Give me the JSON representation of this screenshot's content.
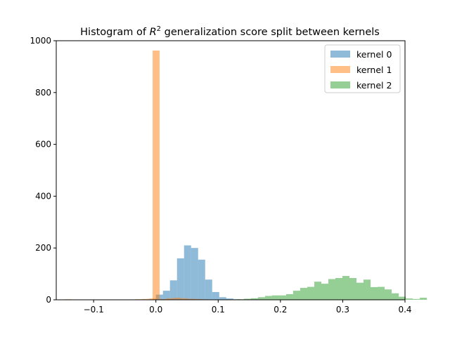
{
  "chart_data": {
    "type": "bar",
    "subtype": "overlaid-histogram",
    "title": {
      "prefix": "Histogram of ",
      "symbol": "R",
      "superscript": "2",
      "suffix": " generalization score split between kernels"
    },
    "xlabel": "",
    "ylabel": "",
    "xlim": [
      -0.16,
      0.4
    ],
    "ylim": [
      0,
      1000
    ],
    "xticks": [
      -0.1,
      0.0,
      0.1,
      0.2,
      0.3,
      0.4
    ],
    "xtick_labels": [
      "−0.1",
      "0.0",
      "0.1",
      "0.2",
      "0.3",
      "0.4"
    ],
    "yticks": [
      0,
      200,
      400,
      600,
      800,
      1000
    ],
    "ytick_labels": [
      "0",
      "200",
      "400",
      "600",
      "800",
      "1000"
    ],
    "grid": false,
    "legend_position": "top-right",
    "series": [
      {
        "name": "kernel 0",
        "color": "#1f77b4",
        "alpha": 0.5,
        "bin_width": 0.0113,
        "bins": [
          [
            0.0,
            20
          ],
          [
            0.0113,
            35
          ],
          [
            0.0226,
            75
          ],
          [
            0.0339,
            160
          ],
          [
            0.0452,
            210
          ],
          [
            0.0565,
            200
          ],
          [
            0.0678,
            155
          ],
          [
            0.0791,
            78
          ],
          [
            0.0904,
            30
          ],
          [
            0.1017,
            10
          ],
          [
            0.113,
            5
          ],
          [
            0.1243,
            2
          ]
        ]
      },
      {
        "name": "kernel 1",
        "color": "#ff7f0e",
        "alpha": 0.5,
        "bin_width": 0.0113,
        "bins": [
          [
            -0.147,
            2
          ],
          [
            -0.1357,
            1
          ],
          [
            -0.1244,
            1
          ],
          [
            -0.1131,
            1
          ],
          [
            -0.1018,
            1
          ],
          [
            -0.0905,
            1
          ],
          [
            -0.0792,
            1
          ],
          [
            -0.0679,
            1
          ],
          [
            -0.0566,
            1
          ],
          [
            -0.0453,
            1
          ],
          [
            -0.034,
            2
          ],
          [
            -0.0227,
            3
          ],
          [
            -0.0114,
            5
          ],
          [
            -0.0053,
            962
          ],
          [
            0.006,
            3
          ],
          [
            0.0173,
            6
          ],
          [
            0.0286,
            8
          ],
          [
            0.0399,
            6
          ],
          [
            0.0512,
            4
          ],
          [
            0.0625,
            3
          ],
          [
            0.0738,
            2
          ],
          [
            0.0851,
            1
          ]
        ]
      },
      {
        "name": "kernel 2",
        "color": "#2ca02c",
        "alpha": 0.5,
        "bin_width": 0.0113,
        "bins": [
          [
            0.13,
            2
          ],
          [
            0.1413,
            4
          ],
          [
            0.1526,
            6
          ],
          [
            0.1639,
            10
          ],
          [
            0.1752,
            15
          ],
          [
            0.1865,
            17
          ],
          [
            0.1978,
            17
          ],
          [
            0.2091,
            22
          ],
          [
            0.2204,
            35
          ],
          [
            0.2317,
            46
          ],
          [
            0.243,
            50
          ],
          [
            0.2543,
            70
          ],
          [
            0.2656,
            62
          ],
          [
            0.2769,
            80
          ],
          [
            0.2882,
            84
          ],
          [
            0.2995,
            92
          ],
          [
            0.3108,
            84
          ],
          [
            0.3221,
            66
          ],
          [
            0.3334,
            78
          ],
          [
            0.3447,
            49
          ],
          [
            0.356,
            50
          ],
          [
            0.3673,
            40
          ],
          [
            0.3786,
            25
          ],
          [
            0.3899,
            12
          ],
          [
            0.4012,
            5
          ],
          [
            0.4125,
            3
          ],
          [
            0.4238,
            8
          ]
        ]
      }
    ]
  }
}
